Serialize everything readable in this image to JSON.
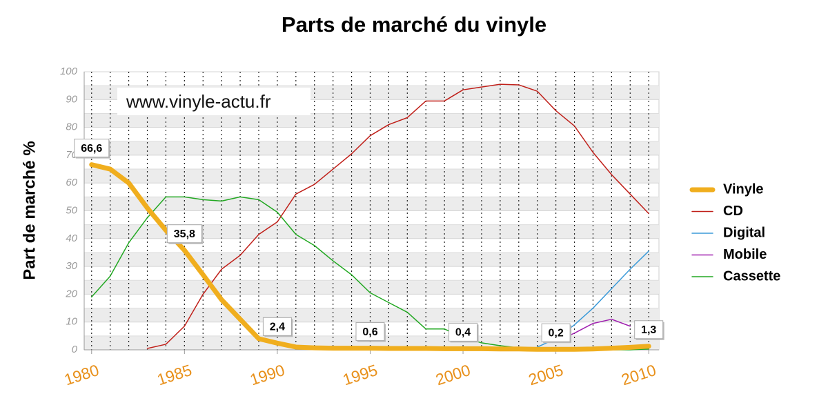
{
  "chart_data": {
    "type": "line",
    "title": "Parts de marché du vinyle",
    "y_label": "Part de marché %",
    "watermark": "www.vinyle-actu.fr",
    "x": [
      1980,
      1981,
      1982,
      1983,
      1984,
      1985,
      1986,
      1987,
      1988,
      1989,
      1990,
      1991,
      1992,
      1993,
      1994,
      1995,
      1996,
      1997,
      1998,
      1999,
      2000,
      2001,
      2002,
      2003,
      2004,
      2005,
      2006,
      2007,
      2008,
      2009,
      2010
    ],
    "xlim": [
      1979.6,
      2010.55
    ],
    "xticks": [
      1980,
      1985,
      1990,
      1995,
      2000,
      2005,
      2010
    ],
    "ylim": [
      0,
      100
    ],
    "yticks": [
      0,
      10,
      20,
      30,
      40,
      50,
      60,
      70,
      80,
      90,
      100
    ],
    "grid": true,
    "legend": "right",
    "series": [
      {
        "name": "Vinyle",
        "color": "#f0ae1e",
        "line_width": 7,
        "values": [
          66.6,
          65,
          60,
          51,
          43,
          35.8,
          27,
          18,
          11,
          4,
          2.4,
          1,
          0.7,
          0.6,
          0.6,
          0.6,
          0.5,
          0.5,
          0.5,
          0.4,
          0.4,
          0.4,
          0.3,
          0.3,
          0.2,
          0.2,
          0.2,
          0.3,
          0.6,
          0.9,
          1.3
        ],
        "value_labels": [
          "66,6",
          null,
          null,
          null,
          null,
          "35,8",
          null,
          null,
          null,
          null,
          "2,4",
          null,
          null,
          null,
          null,
          "0,6",
          null,
          null,
          null,
          null,
          "0,4",
          null,
          null,
          null,
          null,
          "0,2",
          null,
          null,
          null,
          null,
          "1,3"
        ]
      },
      {
        "name": "CD",
        "color": "#c0201a",
        "line_width": 1.5,
        "values": [
          null,
          null,
          null,
          0.5,
          2,
          8.5,
          20,
          29,
          34,
          41.5,
          46,
          56,
          59.5,
          65,
          70.5,
          77,
          81,
          83.5,
          89.5,
          89.5,
          93.5,
          94.5,
          95.5,
          95.3,
          93,
          86,
          80.5,
          71,
          63,
          56,
          49
        ]
      },
      {
        "name": "Digital",
        "color": "#3a9ad9",
        "line_width": 1.5,
        "values": [
          null,
          null,
          null,
          null,
          null,
          null,
          null,
          null,
          null,
          null,
          null,
          null,
          null,
          null,
          null,
          null,
          null,
          null,
          null,
          null,
          null,
          null,
          null,
          null,
          1,
          4,
          9,
          15,
          22,
          29,
          35.5
        ]
      },
      {
        "name": "Mobile",
        "color": "#a020b0",
        "line_width": 1.5,
        "values": [
          null,
          null,
          null,
          null,
          null,
          null,
          null,
          null,
          null,
          null,
          null,
          null,
          null,
          null,
          null,
          null,
          null,
          null,
          null,
          null,
          null,
          null,
          null,
          null,
          null,
          3,
          6,
          9.5,
          11,
          8.5,
          null
        ]
      },
      {
        "name": "Cassette",
        "color": "#22a822",
        "line_width": 1.5,
        "values": [
          19,
          26.5,
          38.5,
          47.5,
          55,
          55,
          54,
          53.5,
          55,
          54,
          49.5,
          41.5,
          37.5,
          32,
          27,
          20.5,
          17,
          13.5,
          7.5,
          7.5,
          4.5,
          2.5,
          1.5,
          0.7,
          0.2,
          0,
          0,
          0,
          0,
          0,
          0.3
        ]
      }
    ]
  }
}
